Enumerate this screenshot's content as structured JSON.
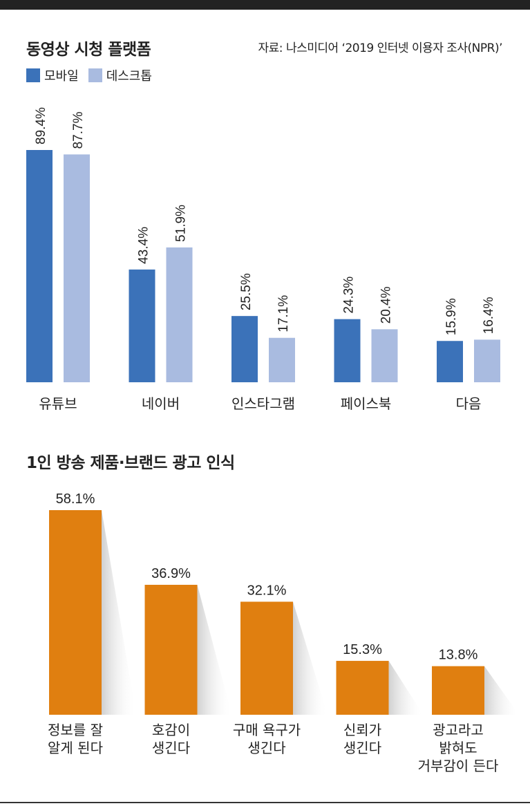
{
  "chart_data": [
    {
      "type": "bar",
      "title": "동영상 시청 플랫폼",
      "source": "자료: 나스미디어 ‘2019 인터넷 이용자 조사(NPR)’",
      "categories": [
        "유튜브",
        "네이버",
        "인스타그램",
        "페이스북",
        "다음"
      ],
      "series": [
        {
          "name": "모바일",
          "values": [
            89.4,
            43.4,
            25.5,
            24.3,
            15.9
          ],
          "labels": [
            "89.4%",
            "43.4%",
            "25.5%",
            "24.3%",
            "15.9%"
          ],
          "color": "#3b72b9"
        },
        {
          "name": "데스크톱",
          "values": [
            87.7,
            51.9,
            17.1,
            20.4,
            16.4
          ],
          "labels": [
            "87.7%",
            "51.9%",
            "17.1%",
            "20.4%",
            "16.4%"
          ],
          "color": "#a9bbe0"
        }
      ],
      "ylim": [
        0,
        89.4
      ],
      "grid": false,
      "legend": "top-left"
    },
    {
      "type": "bar",
      "title": "1인 방송 제품·브랜드 광고 인식",
      "categories": [
        [
          "정보를 잘",
          "알게 된다"
        ],
        [
          "호감이",
          "생긴다"
        ],
        [
          "구매 욕구가",
          "생긴다"
        ],
        [
          "신뢰가",
          "생긴다"
        ],
        [
          "광고라고",
          "밝혀도",
          "거부감이 든다"
        ]
      ],
      "values": [
        58.1,
        36.9,
        32.1,
        15.3,
        13.8
      ],
      "labels": [
        "58.1%",
        "36.9%",
        "32.1%",
        "15.3%",
        "13.8%"
      ],
      "color": "#e07f10",
      "ylim": [
        0,
        58.1
      ],
      "grid": false
    }
  ]
}
